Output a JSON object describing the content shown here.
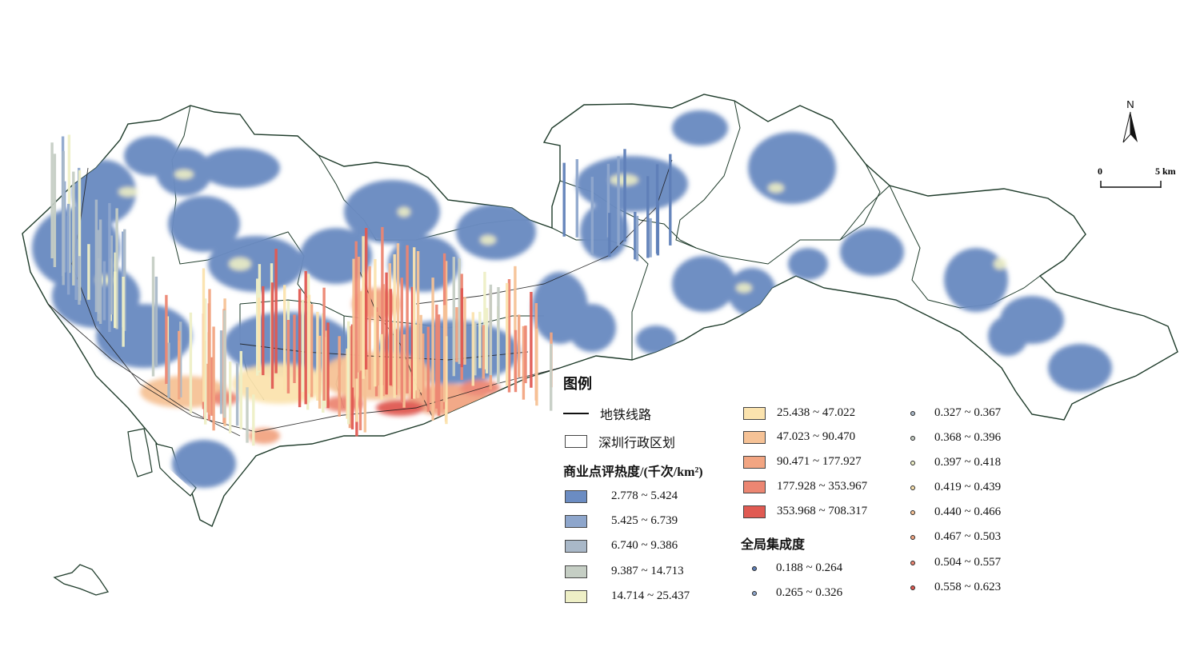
{
  "legend": {
    "title": "图例",
    "subway_label": "地铁线路",
    "district_label": "深圳行政区划",
    "heat_title": "商业点评热度/(千次/km²)",
    "heat_classes": [
      {
        "label": "2.778 ~ 5.424",
        "color": "#6b8cc2"
      },
      {
        "label": "5.425 ~ 6.739",
        "color": "#8ea6cc"
      },
      {
        "label": "6.740 ~ 9.386",
        "color": "#a9b8c8"
      },
      {
        "label": "9.387 ~ 14.713",
        "color": "#c5cec4"
      },
      {
        "label": "14.714 ~ 25.437",
        "color": "#eeefc6"
      },
      {
        "label": "25.438 ~ 47.022",
        "color": "#fbe3ae"
      },
      {
        "label": "47.023 ~ 90.470",
        "color": "#f6c296"
      },
      {
        "label": "90.471 ~ 177.927",
        "color": "#f2a582"
      },
      {
        "label": "177.928 ~ 353.967",
        "color": "#ec8672"
      },
      {
        "label": "353.968 ~ 708.317",
        "color": "#e05a52"
      }
    ],
    "concentration_title": "全局集成度",
    "concentration_classes": [
      {
        "label": "0.188 ~ 0.264",
        "color": "#5f7fb8"
      },
      {
        "label": "0.265 ~ 0.326",
        "color": "#8ea6cc"
      },
      {
        "label": "0.327 ~ 0.367",
        "color": "#a9b8c8"
      },
      {
        "label": "0.368 ~ 0.396",
        "color": "#c5cec4"
      },
      {
        "label": "0.397 ~ 0.418",
        "color": "#eeefc6"
      },
      {
        "label": "0.419 ~ 0.439",
        "color": "#fbe3ae"
      },
      {
        "label": "0.440 ~ 0.466",
        "color": "#f6c296"
      },
      {
        "label": "0.467 ~ 0.503",
        "color": "#f2a582"
      },
      {
        "label": "0.504 ~ 0.557",
        "color": "#ec8672"
      },
      {
        "label": "0.558 ~ 0.623",
        "color": "#e05a52"
      }
    ]
  },
  "north_arrow": {
    "label": "N"
  },
  "scale_bar": {
    "zero": "0",
    "end": "5 km"
  }
}
